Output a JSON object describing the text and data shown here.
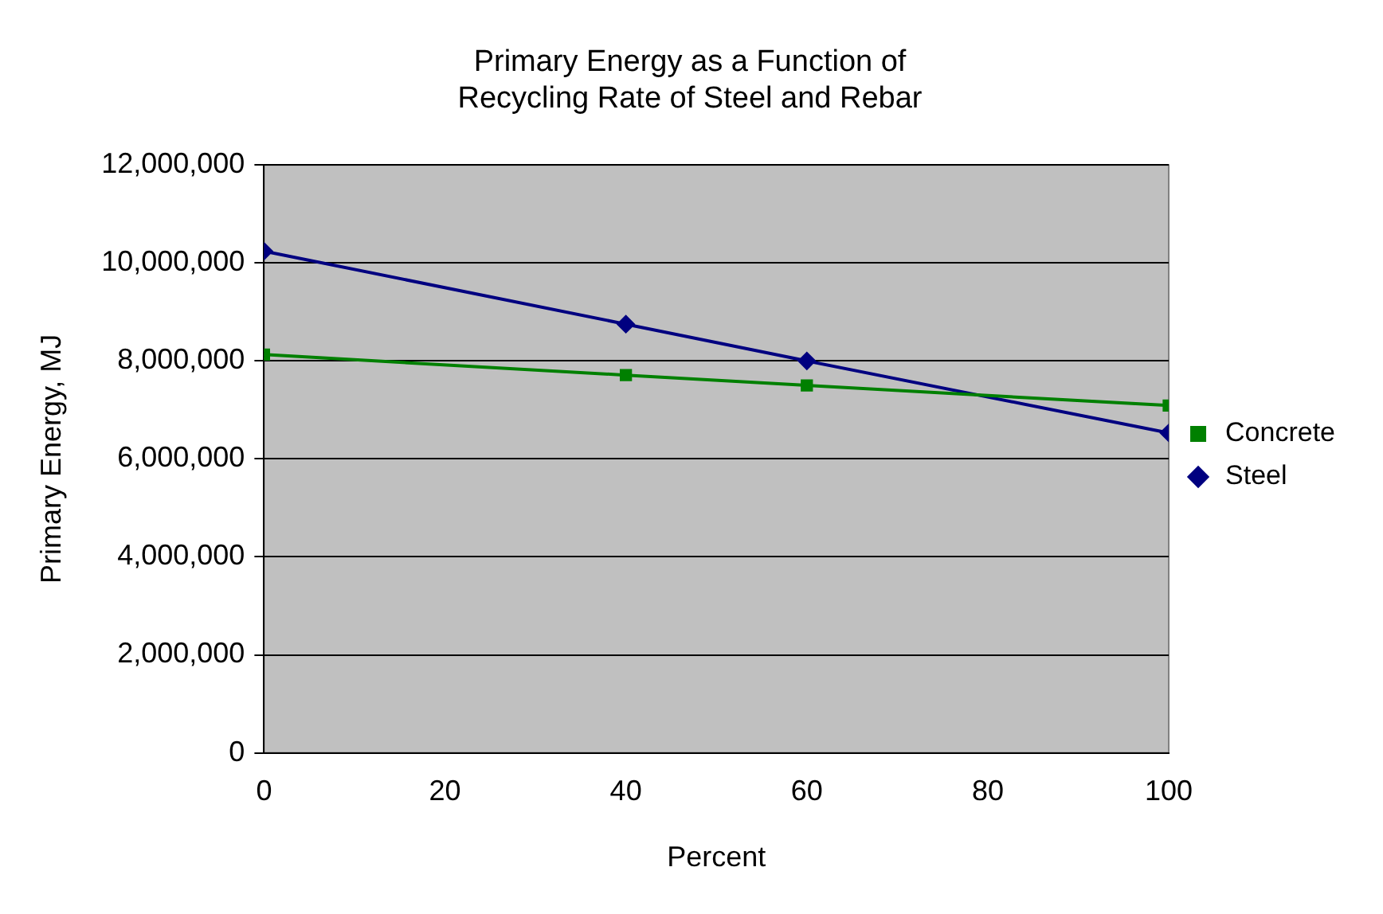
{
  "chart_data": {
    "type": "line",
    "title": "Primary Energy as a Function of\nRecycling Rate of Steel and Rebar",
    "xlabel": "Percent",
    "ylabel": "Primary Energy, MJ",
    "x": [
      0,
      40,
      60,
      100
    ],
    "series": [
      {
        "name": "Concrete",
        "color": "#008000",
        "marker": "square",
        "values": [
          8130000,
          7710000,
          7500000,
          7090000
        ]
      },
      {
        "name": "Steel",
        "color": "#000080",
        "marker": "diamond",
        "values": [
          10240000,
          8750000,
          8000000,
          6530000
        ]
      }
    ],
    "xlim": [
      0,
      100
    ],
    "xticks": [
      0,
      20,
      40,
      60,
      80,
      100
    ],
    "ylim": [
      0,
      12000000
    ],
    "yticks": [
      0,
      {
        "value": 2000000,
        "label": "2,000,000"
      },
      {
        "value": 4000000,
        "label": "4,000,000"
      },
      {
        "value": 6000000,
        "label": "6,000,000"
      },
      {
        "value": 8000000,
        "label": "8,000,000"
      },
      {
        "value": 10000000,
        "label": "10,000,000"
      },
      {
        "value": 12000000,
        "label": "12,000,000"
      }
    ],
    "grid": "y",
    "legend": "right",
    "line_style": "solid"
  }
}
